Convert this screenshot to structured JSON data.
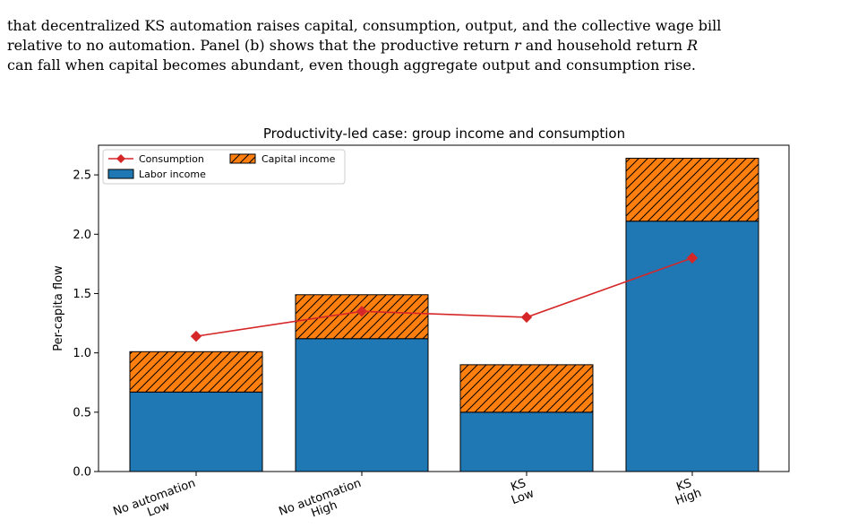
{
  "paragraph": {
    "line1": "that decentralized KS automation raises capital, consumption, output, and the collective wage bill",
    "line2_pre": "relative to no automation. Panel (b) shows that the productive return ",
    "line2_r": "r",
    "line2_mid": " and household return ",
    "line2_R": "R",
    "line3": "can fall when capital becomes abundant, even though aggregate output and consumption rise."
  },
  "chart_data": {
    "type": "bar",
    "title": "Productivity-led case: group income and consumption",
    "xlabel": "",
    "ylabel": "Per-capita flow",
    "ylim": [
      0,
      2.75
    ],
    "yticks": [
      "0.0",
      "0.5",
      "1.0",
      "1.5",
      "2.0",
      "2.5"
    ],
    "categories": [
      [
        "No automation",
        "Low"
      ],
      [
        "No automation",
        "High"
      ],
      [
        "KS",
        "Low"
      ],
      [
        "KS",
        "High"
      ]
    ],
    "series": [
      {
        "name": "Labor income",
        "kind": "bar",
        "values": [
          0.67,
          1.12,
          0.5,
          2.11
        ],
        "color": "#1f77b4"
      },
      {
        "name": "Capital income",
        "kind": "stacked-bar",
        "values": [
          0.34,
          0.37,
          0.4,
          0.53
        ],
        "color": "#ff7f0e",
        "hatch": "diagonal"
      },
      {
        "name": "Consumption",
        "kind": "line",
        "values": [
          1.14,
          1.35,
          1.3,
          1.8
        ],
        "color": "#d62728",
        "marker": "diamond"
      }
    ],
    "legend": "top-left",
    "grid": false
  }
}
